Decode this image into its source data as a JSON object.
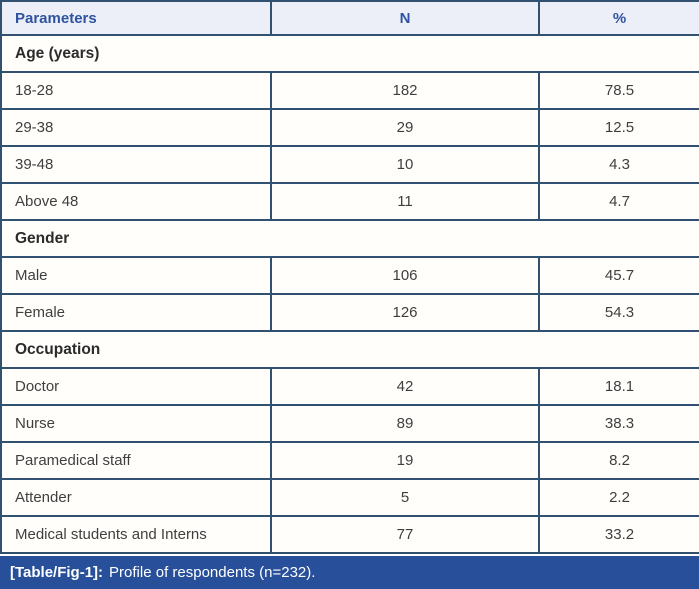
{
  "table": {
    "columns": [
      {
        "label": "Parameters"
      },
      {
        "label": "N"
      },
      {
        "label": "%"
      }
    ],
    "sections": [
      {
        "title": "Age (years)",
        "rows": [
          {
            "parameter": "18-28",
            "n": "182",
            "pct": "78.5"
          },
          {
            "parameter": "29-38",
            "n": "29",
            "pct": "12.5"
          },
          {
            "parameter": "39-48",
            "n": "10",
            "pct": "4.3"
          },
          {
            "parameter": "Above 48",
            "n": "11",
            "pct": "4.7"
          }
        ]
      },
      {
        "title": "Gender",
        "rows": [
          {
            "parameter": "Male",
            "n": "106",
            "pct": "45.7"
          },
          {
            "parameter": "Female",
            "n": "126",
            "pct": "54.3"
          }
        ]
      },
      {
        "title": "Occupation",
        "rows": [
          {
            "parameter": "Doctor",
            "n": "42",
            "pct": "18.1"
          },
          {
            "parameter": "Nurse",
            "n": "89",
            "pct": "38.3"
          },
          {
            "parameter": "Paramedical staff",
            "n": "19",
            "pct": "8.2"
          },
          {
            "parameter": "Attender",
            "n": "5",
            "pct": "2.2"
          },
          {
            "parameter": "Medical students and Interns",
            "n": "77",
            "pct": "33.2"
          }
        ]
      }
    ]
  },
  "caption": {
    "label": "[Table/Fig-1]:",
    "text": "Profile of respondents (n=232)."
  },
  "colors": {
    "header_background": "#edeff8",
    "header_text": "#2d53a0",
    "table_border": "#325070",
    "caption_background": "#284f9a",
    "caption_text": "#ffffff",
    "body_text": "#3f3f3f"
  }
}
